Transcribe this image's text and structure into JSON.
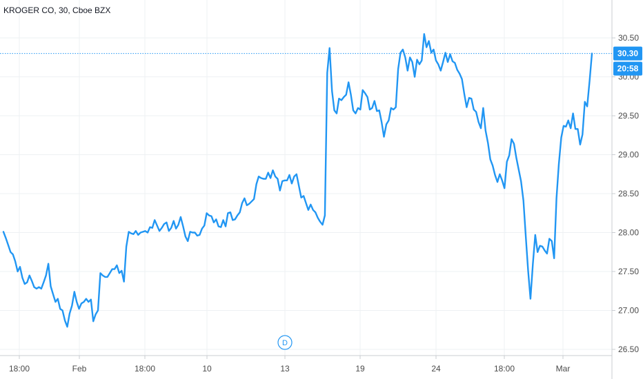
{
  "header": {
    "title": "KROGER CO, 30, Cboe BZX"
  },
  "price_tag": {
    "last_price": "30.30",
    "countdown": "20:58",
    "color": "#2196f3"
  },
  "event_marker": {
    "label": "D"
  },
  "colors": {
    "line": "#2196f3",
    "grid": "#eef0f3",
    "axis": "#c9ccd1",
    "text": "#4a4a4a"
  },
  "chart_data": {
    "type": "line",
    "title": "KROGER CO, 30, Cboe BZX",
    "xlabel": "",
    "ylabel": "",
    "ylim": [
      26.45,
      30.6
    ],
    "yticks": [
      "26.50",
      "27.00",
      "27.50",
      "28.00",
      "28.50",
      "29.00",
      "29.50",
      "30.00",
      "30.50"
    ],
    "x_labels": [
      "18:00",
      "Feb",
      "18:00",
      "10",
      "13",
      "19",
      "24",
      "18:00",
      "Mar"
    ],
    "grid": true,
    "series": [
      {
        "values": [
          28.01,
          27.93,
          27.84,
          27.75,
          27.72,
          27.63,
          27.5,
          27.56,
          27.42,
          27.34,
          27.36,
          27.45,
          27.38,
          27.3,
          27.28,
          27.3,
          27.28,
          27.36,
          27.45,
          27.6,
          27.31,
          27.21,
          27.11,
          27.15,
          27.02,
          27.0,
          26.87,
          26.79,
          26.96,
          27.06,
          27.24,
          27.11,
          27.02,
          27.09,
          27.11,
          27.15,
          27.11,
          27.14,
          26.86,
          26.95,
          27.0,
          27.48,
          27.45,
          27.43,
          27.43,
          27.48,
          27.53,
          27.53,
          27.58,
          27.48,
          27.51,
          27.37,
          27.82,
          28.01,
          27.99,
          27.98,
          28.02,
          27.97,
          28.0,
          28.01,
          28.02,
          28.0,
          28.07,
          28.06,
          28.16,
          28.09,
          28.02,
          28.06,
          28.11,
          28.13,
          28.02,
          28.06,
          28.15,
          28.05,
          28.1,
          28.2,
          28.08,
          27.95,
          27.89,
          28.01,
          28.0,
          28.0,
          27.96,
          27.97,
          28.05,
          28.09,
          28.25,
          28.22,
          28.21,
          28.13,
          28.17,
          28.08,
          28.07,
          28.16,
          28.08,
          28.25,
          28.26,
          28.16,
          28.17,
          28.22,
          28.26,
          28.38,
          28.44,
          28.35,
          28.37,
          28.4,
          28.43,
          28.62,
          28.72,
          28.7,
          28.69,
          28.69,
          28.77,
          28.7,
          28.8,
          28.72,
          28.69,
          28.54,
          28.66,
          28.67,
          28.67,
          28.74,
          28.63,
          28.72,
          28.75,
          28.6,
          28.45,
          28.47,
          28.38,
          28.29,
          28.36,
          28.29,
          28.26,
          28.19,
          28.14,
          28.1,
          28.22,
          30.05,
          30.37,
          29.82,
          29.57,
          29.53,
          29.72,
          29.7,
          29.74,
          29.77,
          29.93,
          29.77,
          29.57,
          29.53,
          29.6,
          29.58,
          29.83,
          29.79,
          29.74,
          29.58,
          29.6,
          29.69,
          29.56,
          29.57,
          29.42,
          29.23,
          29.39,
          29.44,
          29.6,
          29.58,
          29.61,
          30.1,
          30.31,
          30.35,
          30.25,
          30.08,
          30.25,
          30.19,
          30.0,
          30.22,
          30.16,
          30.21,
          30.55,
          30.38,
          30.46,
          30.31,
          30.35,
          30.21,
          30.16,
          30.08,
          30.19,
          30.31,
          30.19,
          30.29,
          30.2,
          30.18,
          30.09,
          30.04,
          29.97,
          29.78,
          29.61,
          29.73,
          29.72,
          29.58,
          29.55,
          29.42,
          29.34,
          29.6,
          29.31,
          29.15,
          28.94,
          28.86,
          28.74,
          28.65,
          28.75,
          28.67,
          28.57,
          28.91,
          28.99,
          29.2,
          29.14,
          28.96,
          28.81,
          28.66,
          28.41,
          27.95,
          27.51,
          27.15,
          27.6,
          27.97,
          27.75,
          27.83,
          27.82,
          27.77,
          27.73,
          27.92,
          27.89,
          27.67,
          28.44,
          28.88,
          29.22,
          29.37,
          29.36,
          29.44,
          29.34,
          29.53,
          29.33,
          29.33,
          29.13,
          29.26,
          29.68,
          29.62,
          29.95,
          30.3
        ]
      }
    ]
  }
}
